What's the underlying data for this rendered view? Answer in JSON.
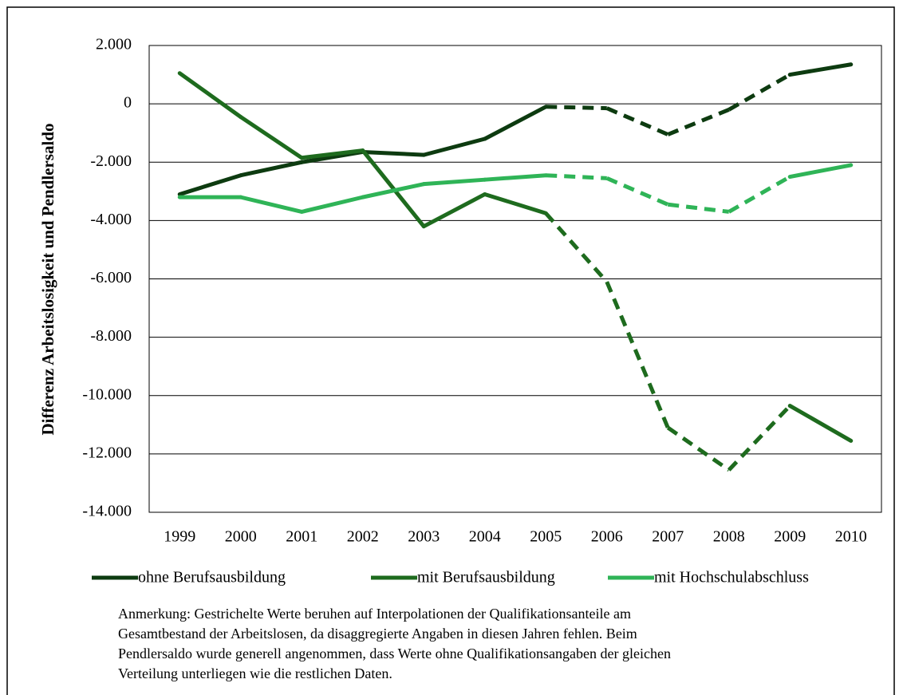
{
  "chart_data": {
    "type": "line",
    "y_label": "Differenz Arbeitslosigkeit und Pendlersaldo",
    "categories": [
      "1999",
      "2000",
      "2001",
      "2002",
      "2003",
      "2004",
      "2005",
      "2006",
      "2007",
      "2008",
      "2009",
      "2010"
    ],
    "interpolated": [
      false,
      false,
      false,
      false,
      false,
      false,
      false,
      true,
      true,
      true,
      false,
      false
    ],
    "series": [
      {
        "name": "ohne Berufsausbildung",
        "color": "#0d3b10",
        "values": [
          -3100,
          -2450,
          -2000,
          -1650,
          -1750,
          -1200,
          -100,
          -150,
          -1050,
          -200,
          1000,
          1350
        ]
      },
      {
        "name": "mit Berufsausbildung",
        "color": "#1e6b1e",
        "values": [
          1050,
          -450,
          -1850,
          -1600,
          -4200,
          -3100,
          -3750,
          -6100,
          -11100,
          -12550,
          -10350,
          -11550
        ]
      },
      {
        "name": "mit Hochschulabschluss",
        "color": "#2fb457",
        "values": [
          -3200,
          -3200,
          -3700,
          -3200,
          -2750,
          -2600,
          -2450,
          -2550,
          -3450,
          -3700,
          -2500,
          -2100
        ]
      }
    ],
    "ylim": [
      -14000,
      2000
    ],
    "yticks": [
      {
        "value": -14000,
        "label": "-14.000"
      },
      {
        "value": -12000,
        "label": "-12.000"
      },
      {
        "value": -10000,
        "label": "-10.000"
      },
      {
        "value": -8000,
        "label": "-8.000"
      },
      {
        "value": -6000,
        "label": "-6.000"
      },
      {
        "value": -4000,
        "label": "-4.000"
      },
      {
        "value": -2000,
        "label": "-2.000"
      },
      0,
      {
        "value": 2000,
        "label": "2.000"
      }
    ],
    "grid": true,
    "legend": "bottom",
    "note": [
      "Anmerkung: Gestrichelte Werte beruhen auf Interpolationen der Qualifikationsanteile am",
      "Gesamtbestand der Arbeitslosen, da disaggregierte Angaben in diesen Jahren fehlen. Beim",
      "Pendlersaldo wurde generell angenommen, dass Werte ohne Qualifikationsangaben der gleichen",
      "Verteilung unterliegen wie die restlichen Daten."
    ]
  }
}
